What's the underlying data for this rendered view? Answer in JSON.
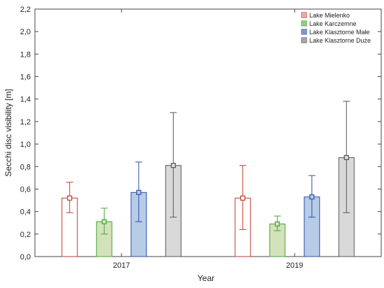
{
  "chart_data": {
    "type": "bar",
    "xlabel": "Year",
    "ylabel": "Secchi disc visibility [m]",
    "categories": [
      "2017",
      "2019"
    ],
    "ylim": [
      0,
      2.2
    ],
    "yticks": [
      "0,0",
      "0,2",
      "0,4",
      "0,6",
      "0,8",
      "1,0",
      "1,2",
      "1,4",
      "1,6",
      "1,8",
      "2,0",
      "2,2"
    ],
    "grid": false,
    "legend_position": "top-right",
    "series": [
      {
        "name": "Lake Mielenko",
        "fill": "#ffffff",
        "stroke": "#c0392b",
        "values": [
          0.52,
          0.52
        ],
        "err_low": [
          0.39,
          0.24
        ],
        "err_high": [
          0.66,
          0.81
        ]
      },
      {
        "name": "Lake Karczemne",
        "fill": "#d3e2bb",
        "stroke": "#3fa534",
        "values": [
          0.31,
          0.29
        ],
        "err_low": [
          0.2,
          0.23
        ],
        "err_high": [
          0.43,
          0.36
        ]
      },
      {
        "name": "Lake Klasztorne Małe",
        "fill": "#b7cce6",
        "stroke": "#2f4fa8",
        "values": [
          0.57,
          0.53
        ],
        "err_low": [
          0.31,
          0.35
        ],
        "err_high": [
          0.84,
          0.72
        ]
      },
      {
        "name": "Lake Klasztorne Duże",
        "fill": "#d9d9d9",
        "stroke": "#555555",
        "values": [
          0.81,
          0.88
        ],
        "err_low": [
          0.35,
          0.39
        ],
        "err_high": [
          1.28,
          1.38
        ]
      }
    ]
  }
}
